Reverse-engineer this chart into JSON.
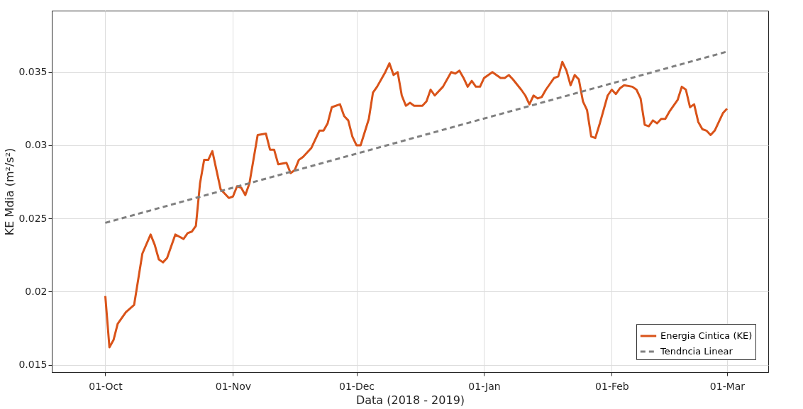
{
  "chart_data": {
    "type": "line",
    "xlabel": "Data (2018 - 2019)",
    "ylabel": "KE Mdia (m²/s²)",
    "x": [
      "2018-10-01",
      "2018-10-02",
      "2018-10-03",
      "2018-10-04",
      "2018-10-06",
      "2018-10-08",
      "2018-10-10",
      "2018-10-12",
      "2018-10-13",
      "2018-10-14",
      "2018-10-15",
      "2018-10-16",
      "2018-10-18",
      "2018-10-20",
      "2018-10-21",
      "2018-10-22",
      "2018-10-23",
      "2018-10-24",
      "2018-10-25",
      "2018-10-26",
      "2018-10-27",
      "2018-10-28",
      "2018-10-29",
      "2018-10-31",
      "2018-11-01",
      "2018-11-02",
      "2018-11-03",
      "2018-11-04",
      "2018-11-05",
      "2018-11-07",
      "2018-11-09",
      "2018-11-10",
      "2018-11-11",
      "2018-11-12",
      "2018-11-14",
      "2018-11-15",
      "2018-11-16",
      "2018-11-17",
      "2018-11-18",
      "2018-11-20",
      "2018-11-22",
      "2018-11-23",
      "2018-11-24",
      "2018-11-25",
      "2018-11-27",
      "2018-11-28",
      "2018-11-29",
      "2018-11-30",
      "2018-12-01",
      "2018-12-02",
      "2018-12-04",
      "2018-12-05",
      "2018-12-06",
      "2018-12-08",
      "2018-12-09",
      "2018-12-10",
      "2018-12-11",
      "2018-12-12",
      "2018-12-13",
      "2018-12-14",
      "2018-12-15",
      "2018-12-17",
      "2018-12-18",
      "2018-12-19",
      "2018-12-20",
      "2018-12-22",
      "2018-12-24",
      "2018-12-25",
      "2018-12-26",
      "2018-12-27",
      "2018-12-28",
      "2018-12-29",
      "2018-12-30",
      "2018-12-31",
      "2019-01-01",
      "2019-01-03",
      "2019-01-05",
      "2019-01-06",
      "2019-01-07",
      "2019-01-08",
      "2019-01-10",
      "2019-01-11",
      "2019-01-12",
      "2019-01-13",
      "2019-01-14",
      "2019-01-15",
      "2019-01-16",
      "2019-01-17",
      "2019-01-18",
      "2019-01-19",
      "2019-01-20",
      "2019-01-21",
      "2019-01-22",
      "2019-01-23",
      "2019-01-24",
      "2019-01-25",
      "2019-01-26",
      "2019-01-27",
      "2019-01-28",
      "2019-01-29",
      "2019-01-31",
      "2019-02-01",
      "2019-02-02",
      "2019-02-03",
      "2019-02-04",
      "2019-02-06",
      "2019-02-07",
      "2019-02-08",
      "2019-02-09",
      "2019-02-10",
      "2019-02-11",
      "2019-02-12",
      "2019-02-13",
      "2019-02-14",
      "2019-02-15",
      "2019-02-17",
      "2019-02-18",
      "2019-02-19",
      "2019-02-20",
      "2019-02-21",
      "2019-02-22",
      "2019-02-23",
      "2019-02-24",
      "2019-02-25",
      "2019-02-26",
      "2019-02-28",
      "2019-03-01"
    ],
    "series": [
      {
        "name": "Energia Cintica (KE)",
        "color": "#d95319",
        "line_style": "solid",
        "values": [
          0.0197,
          0.0162,
          0.0167,
          0.0178,
          0.0186,
          0.0191,
          0.0226,
          0.0239,
          0.0232,
          0.0222,
          0.022,
          0.0223,
          0.0239,
          0.0236,
          0.024,
          0.0241,
          0.0245,
          0.0274,
          0.029,
          0.029,
          0.0296,
          0.0283,
          0.027,
          0.0264,
          0.0265,
          0.0272,
          0.0271,
          0.0266,
          0.0274,
          0.0307,
          0.0308,
          0.0297,
          0.0297,
          0.0287,
          0.0288,
          0.0281,
          0.0283,
          0.029,
          0.0292,
          0.0298,
          0.031,
          0.031,
          0.0315,
          0.0326,
          0.0328,
          0.032,
          0.0317,
          0.0306,
          0.03,
          0.03,
          0.0318,
          0.0336,
          0.034,
          0.035,
          0.0356,
          0.0348,
          0.035,
          0.0334,
          0.0327,
          0.0329,
          0.0327,
          0.0327,
          0.033,
          0.0338,
          0.0334,
          0.034,
          0.035,
          0.0349,
          0.0351,
          0.0346,
          0.034,
          0.0344,
          0.034,
          0.034,
          0.0346,
          0.035,
          0.0346,
          0.0346,
          0.0348,
          0.0345,
          0.0338,
          0.0334,
          0.0328,
          0.0334,
          0.0332,
          0.0333,
          0.0338,
          0.0342,
          0.0346,
          0.0347,
          0.0357,
          0.0351,
          0.0341,
          0.0348,
          0.0345,
          0.033,
          0.0324,
          0.0306,
          0.0305,
          0.0314,
          0.0334,
          0.0338,
          0.0335,
          0.0339,
          0.0341,
          0.034,
          0.0338,
          0.0332,
          0.0314,
          0.0313,
          0.0317,
          0.0315,
          0.0318,
          0.0318,
          0.0323,
          0.0331,
          0.034,
          0.0338,
          0.0326,
          0.0328,
          0.0316,
          0.0311,
          0.031,
          0.0307,
          0.031,
          0.0322,
          0.0325
        ]
      },
      {
        "name": "Tendncia Linear",
        "type": "line",
        "color": "#808080",
        "line_style": "dashed",
        "x": [
          "2018-10-01",
          "2019-03-01"
        ],
        "values": [
          0.0247,
          0.0364
        ]
      }
    ],
    "xlim": [
      "2018-09-18",
      "2019-03-11"
    ],
    "xticks": [
      {
        "value": "2018-10-01",
        "label": "01-Oct"
      },
      {
        "value": "2018-11-01",
        "label": "01-Nov"
      },
      {
        "value": "2018-12-01",
        "label": "01-Dec"
      },
      {
        "value": "2019-01-01",
        "label": "01-Jan"
      },
      {
        "value": "2019-02-01",
        "label": "01-Feb"
      },
      {
        "value": "2019-03-01",
        "label": "01-Mar"
      }
    ],
    "ylim": [
      0.0145,
      0.0392
    ],
    "yticks": [
      0.015,
      0.02,
      0.025,
      0.03,
      0.035
    ],
    "grid": true,
    "legend": "bottom right"
  }
}
